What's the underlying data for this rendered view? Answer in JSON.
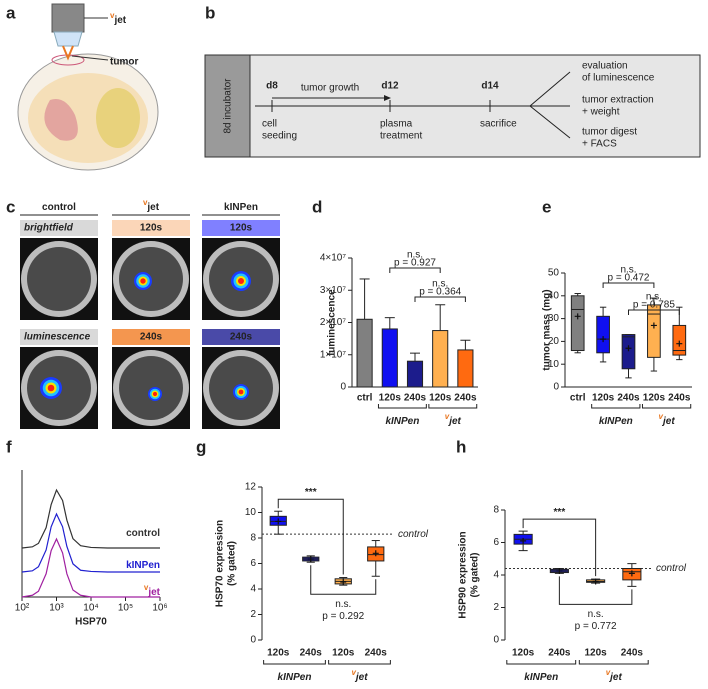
{
  "panel_a": {
    "label": "a",
    "device": {
      "prefix": "v",
      "text": "jet"
    },
    "tumor": "tumor"
  },
  "panel_b": {
    "label": "b",
    "incubator": "8d incubator",
    "arrow_label": "tumor growth",
    "timepoints": [
      {
        "day": "d8",
        "event": [
          "cell",
          "seeding"
        ]
      },
      {
        "day": "d12",
        "event": [
          "plasma",
          "treatment"
        ]
      },
      {
        "day": "d14",
        "event": [
          "sacrifice"
        ]
      }
    ],
    "outcomes": [
      [
        "evaluation",
        "of luminescence"
      ],
      [
        "tumor extraction",
        "+ weight"
      ],
      [
        "tumor digest",
        "+ FACS"
      ]
    ]
  },
  "panel_c": {
    "label": "c",
    "columns": [
      {
        "text": "control"
      },
      {
        "prefix": "v",
        "text": "jet"
      },
      {
        "text": "kINPen"
      }
    ],
    "rows": [
      [
        "brightfield",
        "120s",
        "120s"
      ],
      [
        "luminescence",
        "240s",
        "240s"
      ]
    ]
  },
  "chart_data": [
    {
      "panel": "d",
      "type": "bar",
      "ylabel": "luminescence",
      "categories": [
        "ctrl",
        "120s",
        "240s",
        "120s",
        "240s"
      ],
      "groups": [
        {
          "text": "kINPen"
        },
        {
          "prefix": "v",
          "text": "jet"
        }
      ],
      "values": [
        21000000,
        18000000,
        8000000,
        17500000,
        11500000
      ],
      "errors": [
        12500000,
        3500000,
        2500000,
        8000000,
        3000000
      ],
      "colors": [
        "#808080",
        "#1010f0",
        "#1c1c8c",
        "#ffb050",
        "#ff6a10"
      ],
      "ylim": [
        0,
        40000000
      ],
      "yticks": [
        0,
        {
          "value": 10000000,
          "label": "1×10⁷"
        },
        {
          "value": 20000000,
          "label": "2×10⁷"
        },
        {
          "value": 30000000,
          "label": "3×10⁷"
        },
        {
          "value": 40000000,
          "label": "4×10⁷"
        }
      ],
      "annotations": [
        {
          "text": "n.s.",
          "p": "p = 0.927"
        },
        {
          "text": "n.s.",
          "p": "p = 0.364"
        }
      ]
    },
    {
      "panel": "e",
      "type": "box",
      "ylabel": "tumor mass (mg)",
      "categories": [
        "ctrl",
        "120s",
        "240s",
        "120s",
        "240s"
      ],
      "groups": [
        {
          "text": "kINPen"
        },
        {
          "prefix": "v",
          "text": "jet"
        }
      ],
      "boxes": [
        {
          "min": 15,
          "q1": 16,
          "median": 34,
          "q3": 40,
          "max": 41,
          "mean": 31
        },
        {
          "min": 11,
          "q1": 15,
          "median": 21,
          "q3": 31,
          "max": 35,
          "mean": 21
        },
        {
          "min": 4,
          "q1": 8,
          "median": 22,
          "q3": 23,
          "max": 23,
          "mean": 17
        },
        {
          "min": 7,
          "q1": 13,
          "median": 32,
          "q3": 36,
          "max": 39,
          "mean": 27
        },
        {
          "min": 12,
          "q1": 14,
          "median": 16,
          "q3": 27,
          "max": 35,
          "mean": 19
        }
      ],
      "colors": [
        "#808080",
        "#1010f0",
        "#1c1c8c",
        "#ffb050",
        "#ff6a10"
      ],
      "ylim": [
        0,
        50
      ],
      "yticks": [
        0,
        10,
        20,
        30,
        40,
        50
      ],
      "annotations": [
        {
          "text": "n.s.",
          "p": "p = 0.472"
        },
        {
          "text": "n.s.",
          "p": "p = 0.785"
        }
      ]
    },
    {
      "panel": "f",
      "type": "line",
      "xlabel": "HSP70",
      "log_x": true,
      "xlim": [
        100,
        1000000
      ],
      "xticks": [
        {
          "value": 100,
          "label": "10²"
        },
        {
          "value": 1000,
          "label": "10³"
        },
        {
          "value": 10000,
          "label": "10⁴"
        },
        {
          "value": 100000,
          "label": "10⁵"
        },
        {
          "value": 1000000,
          "label": "10⁶"
        }
      ],
      "x": [
        100,
        200,
        300,
        500,
        700,
        1000,
        1500,
        2000,
        3000,
        5000,
        10000,
        30000,
        100000,
        1000000
      ],
      "series": [
        {
          "name": "control",
          "color": "#333333",
          "values": [
            0,
            2,
            8,
            35,
            75,
            100,
            82,
            48,
            16,
            4,
            1,
            0,
            0,
            0
          ]
        },
        {
          "name": "kINPen",
          "color": "#2020d0",
          "values": [
            0,
            2,
            9,
            38,
            78,
            100,
            78,
            44,
            14,
            3,
            1,
            0,
            0,
            0
          ]
        },
        {
          "name": "jet",
          "name_prefix": "v",
          "color": "#a020a0",
          "values": [
            0,
            3,
            10,
            40,
            80,
            100,
            76,
            40,
            12,
            3,
            0,
            0,
            0,
            0
          ]
        }
      ]
    },
    {
      "panel": "g",
      "type": "box",
      "ylabel": [
        "HSP70 expression",
        "(% gated)"
      ],
      "categories": [
        "120s",
        "240s",
        "120s",
        "240s"
      ],
      "groups": [
        {
          "text": "kINPen"
        },
        {
          "prefix": "v",
          "text": "jet"
        }
      ],
      "boxes": [
        {
          "min": 8.3,
          "q1": 9.0,
          "median": 9.3,
          "q3": 9.7,
          "max": 10.1,
          "mean": 9.3
        },
        {
          "min": 6.1,
          "q1": 6.2,
          "median": 6.35,
          "q3": 6.5,
          "max": 6.6,
          "mean": 6.35
        },
        {
          "min": 4.3,
          "q1": 4.4,
          "median": 4.6,
          "q3": 4.8,
          "max": 4.9,
          "mean": 4.55
        },
        {
          "min": 5.0,
          "q1": 6.2,
          "median": 6.7,
          "q3": 7.3,
          "max": 7.8,
          "mean": 6.8
        }
      ],
      "colors": [
        "#1010f0",
        "#1c1c8c",
        "#ffb050",
        "#ff6a10"
      ],
      "ylim": [
        0,
        12
      ],
      "yticks": [
        0,
        2,
        4,
        6,
        8,
        10,
        12
      ],
      "reference_line": {
        "value": 8.3,
        "label": "control"
      },
      "annotations": [
        {
          "text": "***"
        },
        {
          "text": "n.s.",
          "p": "p = 0.292"
        }
      ]
    },
    {
      "panel": "h",
      "type": "box",
      "ylabel": [
        "HSP90 expression",
        "(% gated)"
      ],
      "categories": [
        "120s",
        "240s",
        "120s",
        "240s"
      ],
      "groups": [
        {
          "text": "kINPen"
        },
        {
          "prefix": "v",
          "text": "jet"
        }
      ],
      "boxes": [
        {
          "min": 5.5,
          "q1": 5.9,
          "median": 6.2,
          "q3": 6.5,
          "max": 6.7,
          "mean": 6.1
        },
        {
          "min": 4.1,
          "q1": 4.15,
          "median": 4.25,
          "q3": 4.35,
          "max": 4.4,
          "mean": 4.25
        },
        {
          "min": 3.5,
          "q1": 3.55,
          "median": 3.6,
          "q3": 3.7,
          "max": 3.75,
          "mean": 3.6
        },
        {
          "min": 3.3,
          "q1": 3.7,
          "median": 4.2,
          "q3": 4.4,
          "max": 4.7,
          "mean": 4.1
        }
      ],
      "colors": [
        "#1010f0",
        "#1c1c8c",
        "#ffb050",
        "#ff6a10"
      ],
      "ylim": [
        0,
        8
      ],
      "yticks": [
        0,
        2,
        4,
        6,
        8
      ],
      "reference_line": {
        "value": 4.4,
        "label": "control"
      },
      "annotations": [
        {
          "text": "***"
        },
        {
          "text": "n.s.",
          "p": "p = 0.772"
        }
      ]
    }
  ]
}
